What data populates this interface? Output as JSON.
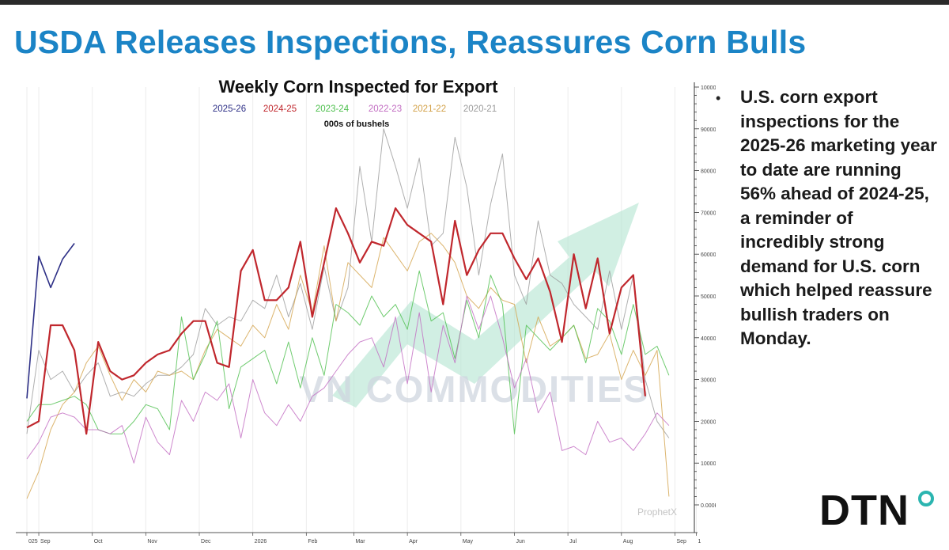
{
  "headline": "USDA Releases Inspections, Reassures Corn Bulls",
  "commentary": {
    "bullet": "•",
    "text": "U.S. corn export inspections for the 2025-26 marketing year to date are running 56% ahead of 2024-25, a reminder of incredibly strong demand for U.S. corn which helped reassure bullish traders on Monday."
  },
  "logo": {
    "text": "DTN",
    "ring_color": "#2bb5b0"
  },
  "watermark": {
    "text": "VN COMMODITIES",
    "arrow_color": "#b9e6d4"
  },
  "chart_data": {
    "type": "line",
    "title": "Weekly Corn Inspected for Export",
    "subtitle": "000s of bushels",
    "footer_brand": "ProphetX",
    "ylim": [
      0,
      100000
    ],
    "y_ticks": [
      {
        "value": 0,
        "label": "0.000K"
      },
      {
        "value": 10000,
        "label": "10000"
      },
      {
        "value": 20000,
        "label": "20000"
      },
      {
        "value": 30000,
        "label": "30000"
      },
      {
        "value": 40000,
        "label": "40000"
      },
      {
        "value": 50000,
        "label": "50000"
      },
      {
        "value": 60000,
        "label": "60000"
      },
      {
        "value": 70000,
        "label": "70000"
      },
      {
        "value": 80000,
        "label": "80000"
      },
      {
        "value": 90000,
        "label": "90000"
      },
      {
        "value": 100000,
        "label": "100000"
      }
    ],
    "x_ticks": [
      {
        "week": 0,
        "label": "025"
      },
      {
        "week": 1,
        "label": "Sep"
      },
      {
        "week": 5.5,
        "label": "Oct"
      },
      {
        "week": 10,
        "label": "Nov"
      },
      {
        "week": 14.5,
        "label": "Dec"
      },
      {
        "week": 19,
        "label": "2026"
      },
      {
        "week": 23.5,
        "label": "Feb"
      },
      {
        "week": 27.5,
        "label": "Mar"
      },
      {
        "week": 32,
        "label": "Apr"
      },
      {
        "week": 36.5,
        "label": "May"
      },
      {
        "week": 41,
        "label": "Jun"
      },
      {
        "week": 45.5,
        "label": "Jul"
      },
      {
        "week": 50,
        "label": "Aug"
      },
      {
        "week": 54.5,
        "label": "Sep"
      },
      {
        "week": 56.3,
        "label": "1"
      }
    ],
    "grid": true,
    "legend_position": "top",
    "series": [
      {
        "name": "2020-21",
        "color": "#9b9b9b",
        "width": 1,
        "values": [
          17000,
          37000,
          30000,
          32000,
          27000,
          31000,
          34000,
          26000,
          27000,
          26000,
          29000,
          31000,
          31000,
          33000,
          36000,
          47000,
          43000,
          45000,
          44000,
          49000,
          47000,
          55000,
          45000,
          53000,
          42000,
          57000,
          44000,
          52000,
          81000,
          63000,
          90000,
          81000,
          71000,
          83000,
          62000,
          65000,
          88000,
          76000,
          55000,
          72000,
          84000,
          55000,
          48000,
          68000,
          55000,
          53000,
          48000,
          45000,
          42000,
          56000,
          42000,
          55000,
          30000,
          20000,
          16000
        ]
      },
      {
        "name": "2021-22",
        "color": "#d3a24a",
        "width": 1,
        "values": [
          1500,
          8000,
          18000,
          24000,
          27000,
          34000,
          38000,
          31000,
          25000,
          30000,
          27000,
          32000,
          31000,
          32000,
          30000,
          37000,
          42000,
          40000,
          38000,
          43000,
          40000,
          48000,
          42000,
          55000,
          46000,
          62000,
          44000,
          58000,
          55000,
          52000,
          64000,
          60000,
          56000,
          63000,
          65000,
          62000,
          58000,
          50000,
          47000,
          52000,
          49000,
          48000,
          34000,
          45000,
          38000,
          40000,
          43000,
          35000,
          36000,
          41000,
          30000,
          37000,
          31000,
          37000,
          2000
        ]
      },
      {
        "name": "2023-24",
        "color": "#4cbf4c",
        "width": 1,
        "values": [
          20000,
          24000,
          24000,
          25000,
          26000,
          24000,
          18000,
          17000,
          17000,
          20000,
          24000,
          23000,
          18000,
          45000,
          30000,
          36000,
          44000,
          23000,
          33000,
          35000,
          37000,
          29000,
          39000,
          28000,
          40000,
          31000,
          48000,
          46000,
          43000,
          50000,
          45000,
          48000,
          42000,
          56000,
          44000,
          46000,
          35000,
          49000,
          40000,
          55000,
          48000,
          17000,
          43000,
          40000,
          37000,
          40000,
          43000,
          34000,
          47000,
          44000,
          36000,
          48000,
          36000,
          38000,
          31000
        ]
      },
      {
        "name": "2022-23",
        "color": "#c26cc2",
        "width": 1,
        "values": [
          11000,
          15000,
          21000,
          22000,
          21000,
          18000,
          18000,
          17000,
          19000,
          10000,
          21000,
          15000,
          12000,
          25000,
          20000,
          27000,
          25000,
          29000,
          16000,
          30000,
          22000,
          19000,
          24000,
          20000,
          26000,
          28000,
          32000,
          36000,
          39000,
          40000,
          33000,
          45000,
          29000,
          46000,
          27000,
          43000,
          34000,
          50000,
          42000,
          50000,
          40000,
          28000,
          35000,
          22000,
          27000,
          13000,
          14000,
          12000,
          20000,
          15000,
          16000,
          13000,
          17000,
          22000,
          19000
        ]
      },
      {
        "name": "2024-25",
        "color": "#c0272d",
        "width": 2.2,
        "values": [
          18500,
          20000,
          43000,
          43000,
          37000,
          17000,
          39000,
          32000,
          30000,
          31000,
          34000,
          36000,
          37000,
          41000,
          44000,
          44000,
          34000,
          33000,
          56000,
          61000,
          49000,
          49000,
          52000,
          63000,
          45000,
          58000,
          71000,
          65000,
          58000,
          63000,
          62000,
          71000,
          67000,
          65000,
          63000,
          48000,
          68000,
          55000,
          61000,
          65000,
          65000,
          59000,
          54000,
          59000,
          51000,
          39000,
          60000,
          47000,
          59000,
          41000,
          52000,
          55000,
          26000
        ]
      },
      {
        "name": "2025-26",
        "color": "#2d2f86",
        "width": 1.6,
        "values": [
          25500,
          59500,
          52000,
          58800,
          62600
        ]
      }
    ]
  }
}
